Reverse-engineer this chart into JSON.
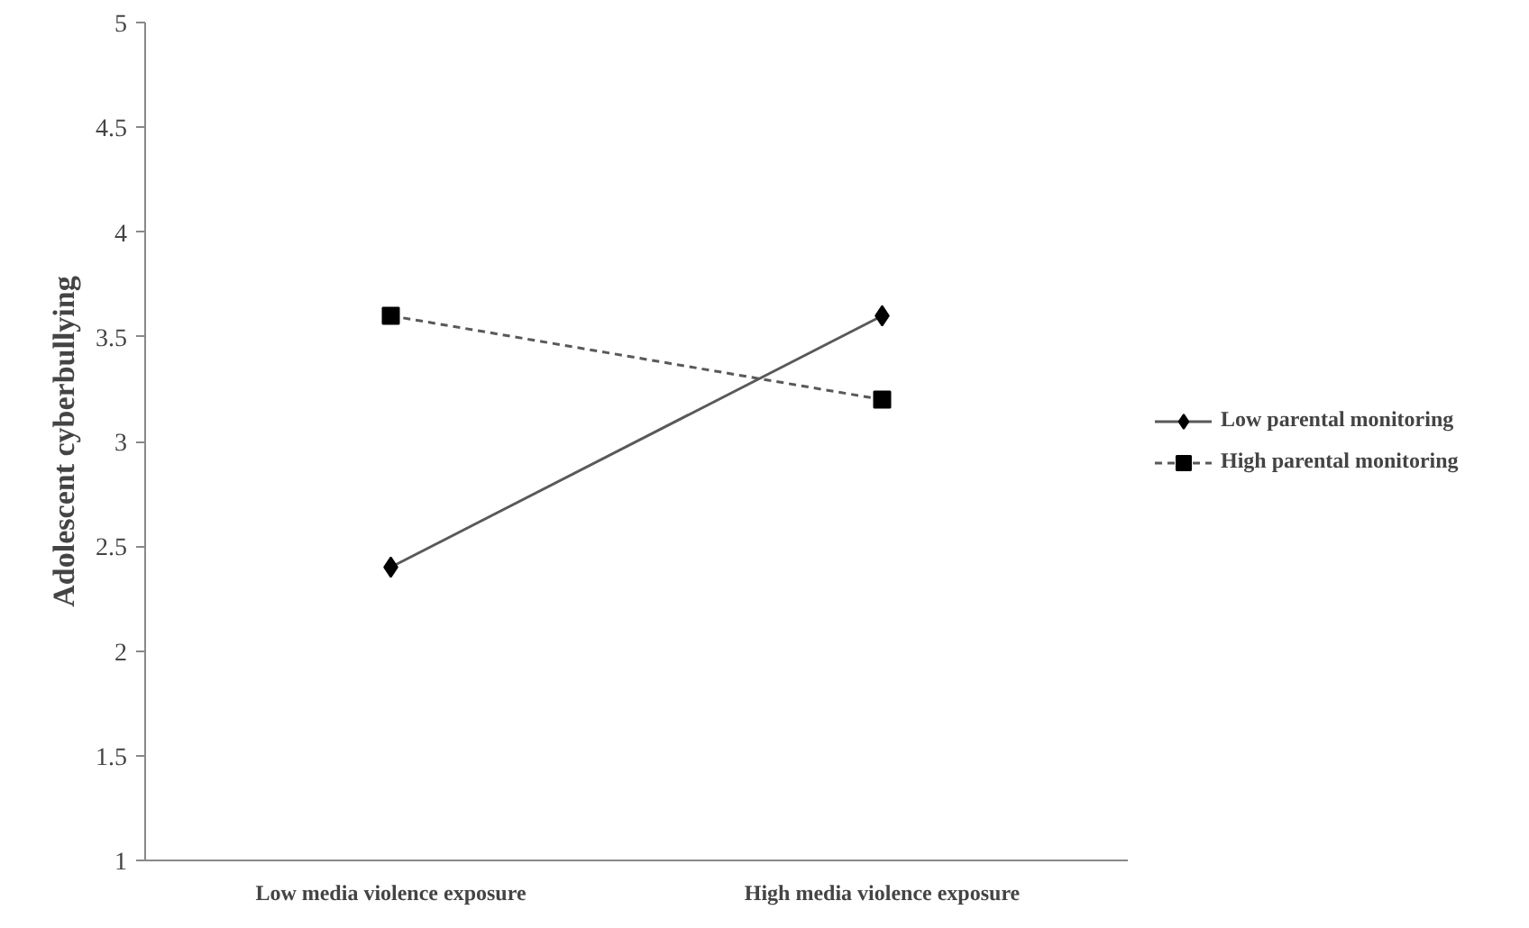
{
  "chart_data": {
    "type": "line",
    "ylabel": "Adolescent cyberbullying",
    "categories": [
      "Low media violence exposure",
      "High media violence exposure"
    ],
    "series": [
      {
        "name": "Low parental monitoring",
        "color": "#595959",
        "values": [
          2.4,
          3.6
        ],
        "marker": "diamond",
        "line_style": "solid"
      },
      {
        "name": "High parental monitoring",
        "color": "#595959",
        "values": [
          3.6,
          3.2
        ],
        "marker": "square",
        "line_style": "dashed"
      }
    ],
    "ylim": [
      1,
      5
    ],
    "yticks": [
      1,
      1.5,
      2,
      2.5,
      3,
      3.5,
      4,
      4.5,
      5
    ],
    "grid": false,
    "legend": "right"
  }
}
